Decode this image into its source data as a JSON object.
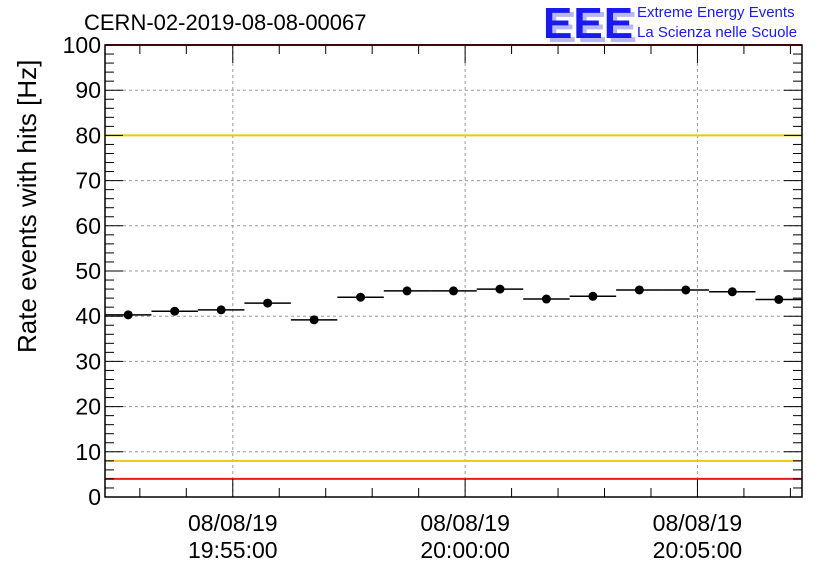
{
  "chart_data": {
    "type": "scatter",
    "title": "CERN-02-2019-08-08-00067",
    "ylabel": "Rate events with hits [Hz]",
    "xlabel": "",
    "ylim": [
      0,
      100
    ],
    "y_ticks": [
      0,
      10,
      20,
      30,
      40,
      50,
      60,
      70,
      80,
      90,
      100
    ],
    "x_axis": {
      "type": "time",
      "range": [
        "19:52:15",
        "20:07:15"
      ],
      "tick_labels": [
        {
          "time": "19:55:00",
          "date": "08/08/19"
        },
        {
          "time": "20:00:00",
          "date": "08/08/19"
        },
        {
          "time": "20:05:00",
          "date": "08/08/19"
        }
      ]
    },
    "grid": true,
    "series": [
      {
        "points": [
          {
            "x_start": "19:52:15",
            "x_end": "19:53:15",
            "y": 40.3
          },
          {
            "x_start": "19:53:15",
            "x_end": "19:54:15",
            "y": 41.1
          },
          {
            "x_start": "19:54:15",
            "x_end": "19:55:15",
            "y": 41.4
          },
          {
            "x_start": "19:55:15",
            "x_end": "19:56:15",
            "y": 42.9
          },
          {
            "x_start": "19:56:15",
            "x_end": "19:57:15",
            "y": 39.2
          },
          {
            "x_start": "19:57:15",
            "x_end": "19:58:15",
            "y": 44.2
          },
          {
            "x_start": "19:58:15",
            "x_end": "19:59:15",
            "y": 45.6
          },
          {
            "x_start": "19:59:15",
            "x_end": "20:00:15",
            "y": 45.6
          },
          {
            "x_start": "20:00:15",
            "x_end": "20:01:15",
            "y": 46.0
          },
          {
            "x_start": "20:01:15",
            "x_end": "20:02:15",
            "y": 43.8
          },
          {
            "x_start": "20:02:15",
            "x_end": "20:03:15",
            "y": 44.4
          },
          {
            "x_start": "20:03:15",
            "x_end": "20:04:15",
            "y": 45.8
          },
          {
            "x_start": "20:04:15",
            "x_end": "20:05:15",
            "y": 45.8
          },
          {
            "x_start": "20:05:15",
            "x_end": "20:06:15",
            "y": 45.4
          },
          {
            "x_start": "20:06:15",
            "x_end": "20:07:15",
            "y": 43.7
          }
        ]
      }
    ],
    "reference_lines": [
      {
        "y": 100,
        "color": "#e8201a"
      },
      {
        "y": 80,
        "color": "#e8c81a"
      },
      {
        "y": 8,
        "color": "#e8c81a"
      },
      {
        "y": 4,
        "color": "#e8201a"
      }
    ]
  },
  "logo": {
    "mark": "EEE",
    "line1": "Extreme Energy Events",
    "line2": "La Scienza nelle Scuole"
  }
}
